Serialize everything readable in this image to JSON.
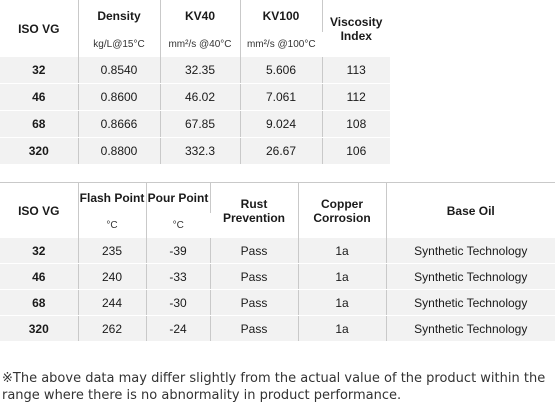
{
  "table1": {
    "headers": {
      "grade": "ISO VG",
      "density": "Density",
      "kv40": "KV40",
      "kv100": "KV100",
      "vi": "Viscosity Index"
    },
    "units": {
      "density": "kg/L@15°C",
      "kv40": "mm²/s @40°C",
      "kv100": "mm²/s @100°C"
    },
    "rows": [
      {
        "grade": "32",
        "density": "0.8540",
        "kv40": "32.35",
        "kv100": "5.606",
        "vi": "113"
      },
      {
        "grade": "46",
        "density": "0.8600",
        "kv40": "46.02",
        "kv100": "7.061",
        "vi": "112"
      },
      {
        "grade": "68",
        "density": "0.8666",
        "kv40": "67.85",
        "kv100": "9.024",
        "vi": "108"
      },
      {
        "grade": "320",
        "density": "0.8800",
        "kv40": "332.3",
        "kv100": "26.67",
        "vi": "106"
      }
    ]
  },
  "table2": {
    "headers": {
      "grade": "ISO VG",
      "flash": "Flash Point",
      "pour": "Pour Point",
      "rust": "Rust Prevention",
      "copper": "Copper Corrosion",
      "base": "Base Oil"
    },
    "units": {
      "flash": "°C",
      "pour": "°C"
    },
    "rows": [
      {
        "grade": "32",
        "flash": "235",
        "pour": "-39",
        "rust": "Pass",
        "copper": "1a",
        "base": "Synthetic Technology"
      },
      {
        "grade": "46",
        "flash": "240",
        "pour": "-33",
        "rust": "Pass",
        "copper": "1a",
        "base": "Synthetic Technology"
      },
      {
        "grade": "68",
        "flash": "244",
        "pour": "-30",
        "rust": "Pass",
        "copper": "1a",
        "base": "Synthetic Technology"
      },
      {
        "grade": "320",
        "flash": "262",
        "pour": "-24",
        "rust": "Pass",
        "copper": "1a",
        "base": "Synthetic Technology"
      }
    ]
  },
  "note": "※The above data may differ slightly from the actual value of the product within the range where there is no abnormality in product performance."
}
